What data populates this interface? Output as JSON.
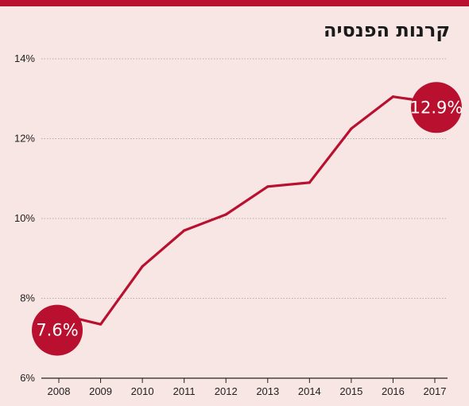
{
  "title": "קרנות הפנסיה",
  "colors": {
    "accent": "#b8102e",
    "line": "#b8102e",
    "background": "#f7e6e3",
    "grid": "#9a9a9a"
  },
  "chart_data": {
    "type": "line",
    "title": "קרנות הפנסיה",
    "xlabel": "",
    "ylabel": "",
    "x": [
      2008,
      2009,
      2010,
      2011,
      2012,
      2013,
      2014,
      2015,
      2016,
      2017
    ],
    "series": [
      {
        "values": [
          7.6,
          7.35,
          8.8,
          9.7,
          10.1,
          10.8,
          10.9,
          12.25,
          13.05,
          12.9
        ]
      }
    ],
    "ylim": [
      6,
      14
    ],
    "yticks": [
      6,
      8,
      10,
      12,
      14
    ],
    "ytick_labels": [
      "6%",
      "8%",
      "10%",
      "12%",
      "14%"
    ],
    "xtick_labels": [
      "2008",
      "2009",
      "2010",
      "2011",
      "2012",
      "2013",
      "2014",
      "2015",
      "2016",
      "2017"
    ],
    "grid": true,
    "legend": "none",
    "annotations": [
      {
        "x": 2008,
        "y": 7.6,
        "label": "7.6%"
      },
      {
        "x": 2017,
        "y": 12.9,
        "label": "12.9%"
      }
    ]
  }
}
